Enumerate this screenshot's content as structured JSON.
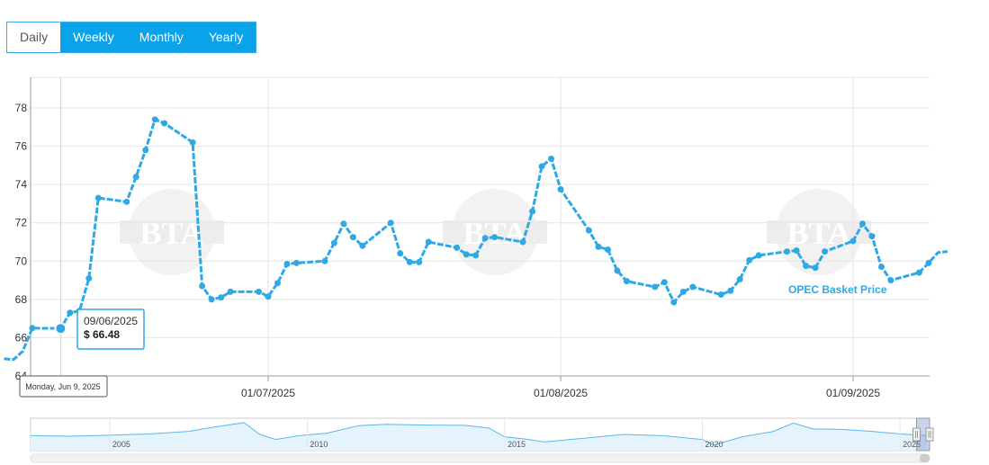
{
  "period_buttons": [
    {
      "label": "Daily",
      "active": true
    },
    {
      "label": "Weekly",
      "active": false
    },
    {
      "label": "Monthly",
      "active": false
    },
    {
      "label": "Yearly",
      "active": false
    }
  ],
  "watermark_text": "BTA",
  "colors": {
    "series": "#2fa8e6",
    "button": "#0aa2e8",
    "grid": "#e6e6e6"
  },
  "chart_data": {
    "type": "line",
    "x_axis": {
      "type": "date",
      "tick_labels": [
        "01/07/2025",
        "01/08/2025",
        "01/09/2025"
      ]
    },
    "y_axis": {
      "tick_labels": [
        "64",
        "66",
        "68",
        "70",
        "72",
        "74",
        "76",
        "78"
      ],
      "ylim": [
        64,
        79.6
      ]
    },
    "grid": true,
    "series": [
      {
        "name": "OPEC Basket Price",
        "points": [
          [
            "2025-06-03",
            64.9
          ],
          [
            "2025-06-04",
            64.85
          ],
          [
            "2025-06-05",
            65.3
          ],
          [
            "2025-06-06",
            66.5
          ],
          [
            "2025-06-09",
            66.48
          ],
          [
            "2025-06-10",
            67.3
          ],
          [
            "2025-06-11",
            67.4
          ],
          [
            "2025-06-12",
            69.1
          ],
          [
            "2025-06-13",
            73.3
          ],
          [
            "2025-06-16",
            73.1
          ],
          [
            "2025-06-17",
            74.4
          ],
          [
            "2025-06-18",
            75.8
          ],
          [
            "2025-06-19",
            77.4
          ],
          [
            "2025-06-20",
            77.2
          ],
          [
            "2025-06-23",
            76.2
          ],
          [
            "2025-06-24",
            68.7
          ],
          [
            "2025-06-25",
            68.0
          ],
          [
            "2025-06-26",
            68.1
          ],
          [
            "2025-06-27",
            68.4
          ],
          [
            "2025-06-30",
            68.4
          ],
          [
            "2025-07-01",
            68.15
          ],
          [
            "2025-07-02",
            68.85
          ],
          [
            "2025-07-03",
            69.85
          ],
          [
            "2025-07-04",
            69.9
          ],
          [
            "2025-07-07",
            70.0
          ],
          [
            "2025-07-08",
            70.95
          ],
          [
            "2025-07-09",
            71.95
          ],
          [
            "2025-07-10",
            71.25
          ],
          [
            "2025-07-11",
            70.8
          ],
          [
            "2025-07-14",
            72.0
          ],
          [
            "2025-07-15",
            70.4
          ],
          [
            "2025-07-16",
            69.95
          ],
          [
            "2025-07-17",
            69.95
          ],
          [
            "2025-07-18",
            71.0
          ],
          [
            "2025-07-21",
            70.7
          ],
          [
            "2025-07-22",
            70.35
          ],
          [
            "2025-07-23",
            70.3
          ],
          [
            "2025-07-24",
            71.2
          ],
          [
            "2025-07-25",
            71.25
          ],
          [
            "2025-07-28",
            71.0
          ],
          [
            "2025-07-29",
            72.6
          ],
          [
            "2025-07-30",
            74.95
          ],
          [
            "2025-07-31",
            75.35
          ],
          [
            "2025-08-01",
            73.75
          ],
          [
            "2025-08-04",
            71.6
          ],
          [
            "2025-08-05",
            70.75
          ],
          [
            "2025-08-06",
            70.6
          ],
          [
            "2025-08-07",
            69.5
          ],
          [
            "2025-08-08",
            68.95
          ],
          [
            "2025-08-11",
            68.65
          ],
          [
            "2025-08-12",
            68.9
          ],
          [
            "2025-08-13",
            67.85
          ],
          [
            "2025-08-14",
            68.4
          ],
          [
            "2025-08-15",
            68.65
          ],
          [
            "2025-08-18",
            68.25
          ],
          [
            "2025-08-19",
            68.45
          ],
          [
            "2025-08-20",
            69.05
          ],
          [
            "2025-08-21",
            70.05
          ],
          [
            "2025-08-22",
            70.3
          ],
          [
            "2025-08-25",
            70.5
          ],
          [
            "2025-08-26",
            70.55
          ],
          [
            "2025-08-27",
            69.75
          ],
          [
            "2025-08-28",
            69.65
          ],
          [
            "2025-08-29",
            70.5
          ],
          [
            "2025-09-01",
            71.05
          ],
          [
            "2025-09-02",
            71.95
          ],
          [
            "2025-09-03",
            71.3
          ],
          [
            "2025-09-04",
            69.7
          ],
          [
            "2025-09-05",
            69.0
          ],
          [
            "2025-09-08",
            69.4
          ],
          [
            "2025-09-09",
            69.9
          ],
          [
            "2025-09-10",
            70.45
          ],
          [
            "2025-09-11",
            70.5
          ]
        ]
      }
    ],
    "tooltip": {
      "date": "09/06/2025",
      "price": "$ 66.48",
      "crosshair_label": "Monday, Jun 9, 2025"
    },
    "navigator": {
      "tick_labels": [
        "2005",
        "2010",
        "2015",
        "2020",
        "2025"
      ],
      "series": [
        [
          2003.0,
          0.45
        ],
        [
          2004.0,
          0.43
        ],
        [
          2005.0,
          0.47
        ],
        [
          2006.0,
          0.52
        ],
        [
          2007.0,
          0.62
        ],
        [
          2007.6,
          0.78
        ],
        [
          2008.4,
          0.97
        ],
        [
          2008.8,
          0.5
        ],
        [
          2009.2,
          0.3
        ],
        [
          2009.8,
          0.45
        ],
        [
          2010.5,
          0.55
        ],
        [
          2011.3,
          0.85
        ],
        [
          2012.0,
          0.9
        ],
        [
          2013.0,
          0.87
        ],
        [
          2014.0,
          0.86
        ],
        [
          2014.6,
          0.75
        ],
        [
          2015.0,
          0.4
        ],
        [
          2015.5,
          0.32
        ],
        [
          2016.0,
          0.2
        ],
        [
          2017.0,
          0.35
        ],
        [
          2018.0,
          0.5
        ],
        [
          2019.0,
          0.45
        ],
        [
          2020.0,
          0.3
        ],
        [
          2020.3,
          0.08
        ],
        [
          2021.0,
          0.4
        ],
        [
          2021.8,
          0.62
        ],
        [
          2022.3,
          0.95
        ],
        [
          2022.8,
          0.72
        ],
        [
          2023.5,
          0.7
        ],
        [
          2024.3,
          0.62
        ],
        [
          2025.0,
          0.52
        ],
        [
          2025.7,
          0.45
        ]
      ]
    }
  }
}
